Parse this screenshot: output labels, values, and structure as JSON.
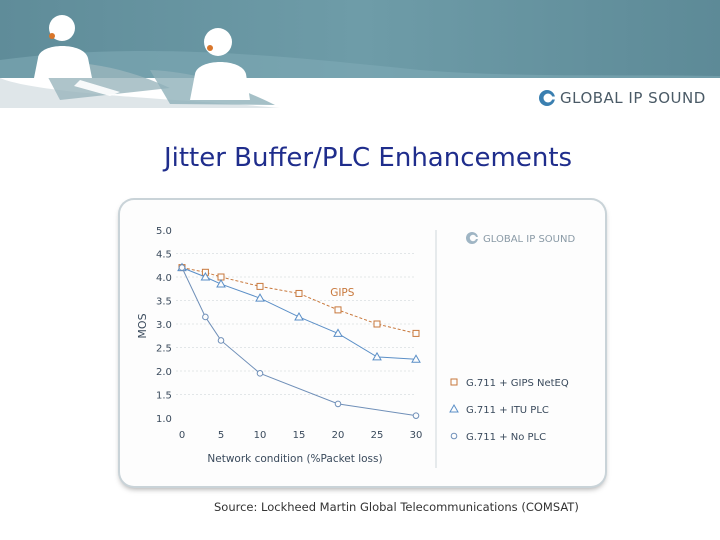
{
  "header": {
    "brand_name": "Global IP Sound",
    "brand_display": "GLOBAL IP SOUND",
    "colors": {
      "banner": "#6a97a3",
      "banner_dark": "#4f7f8d"
    }
  },
  "slide": {
    "title": "Jitter Buffer/PLC Enhancements",
    "source": "Source: Lockheed Martin Global Telecommunications (COMSAT)"
  },
  "chart_data": {
    "type": "line",
    "xlabel": "Network condition (%Packet loss)",
    "ylabel": "MOS",
    "x": [
      0,
      5,
      10,
      15,
      20,
      25,
      30
    ],
    "x_tick_labels": [
      "0",
      "5",
      "10",
      "15",
      "20",
      "25",
      "30"
    ],
    "y_tick_labels": [
      "5.0",
      "4.5",
      "4.0",
      "3.5",
      "3.0",
      "2.5",
      "2.0",
      "1.5",
      "1.0"
    ],
    "xlim": [
      0,
      30
    ],
    "ylim": [
      1.0,
      5.0
    ],
    "legend_position": "right",
    "watermark": "GLOBAL IP SOUND",
    "series": [
      {
        "name": "G.711 + GIPS NetEQ",
        "marker": "square",
        "color": "#c8783c",
        "x": [
          0,
          3,
          5,
          10,
          15,
          20,
          25,
          30
        ],
        "y": [
          4.2,
          4.1,
          4.0,
          3.8,
          3.65,
          3.3,
          3.0,
          2.8
        ]
      },
      {
        "name": "G.711 + ITU PLC",
        "marker": "triangle",
        "color": "#5b8fc7",
        "x": [
          0,
          3,
          5,
          10,
          15,
          20,
          25,
          30
        ],
        "y": [
          4.2,
          4.0,
          3.85,
          3.55,
          3.15,
          2.8,
          2.3,
          2.25
        ]
      },
      {
        "name": "G.711 + No PLC",
        "marker": "circle",
        "color": "#6f8fb8",
        "x": [
          0,
          3,
          5,
          10,
          20,
          30
        ],
        "y": [
          4.2,
          3.15,
          2.65,
          1.95,
          1.3,
          1.05
        ]
      }
    ],
    "annotations": [
      {
        "text": "GIPS",
        "x": 19,
        "y": 3.6,
        "color": "#c8783c"
      }
    ]
  }
}
